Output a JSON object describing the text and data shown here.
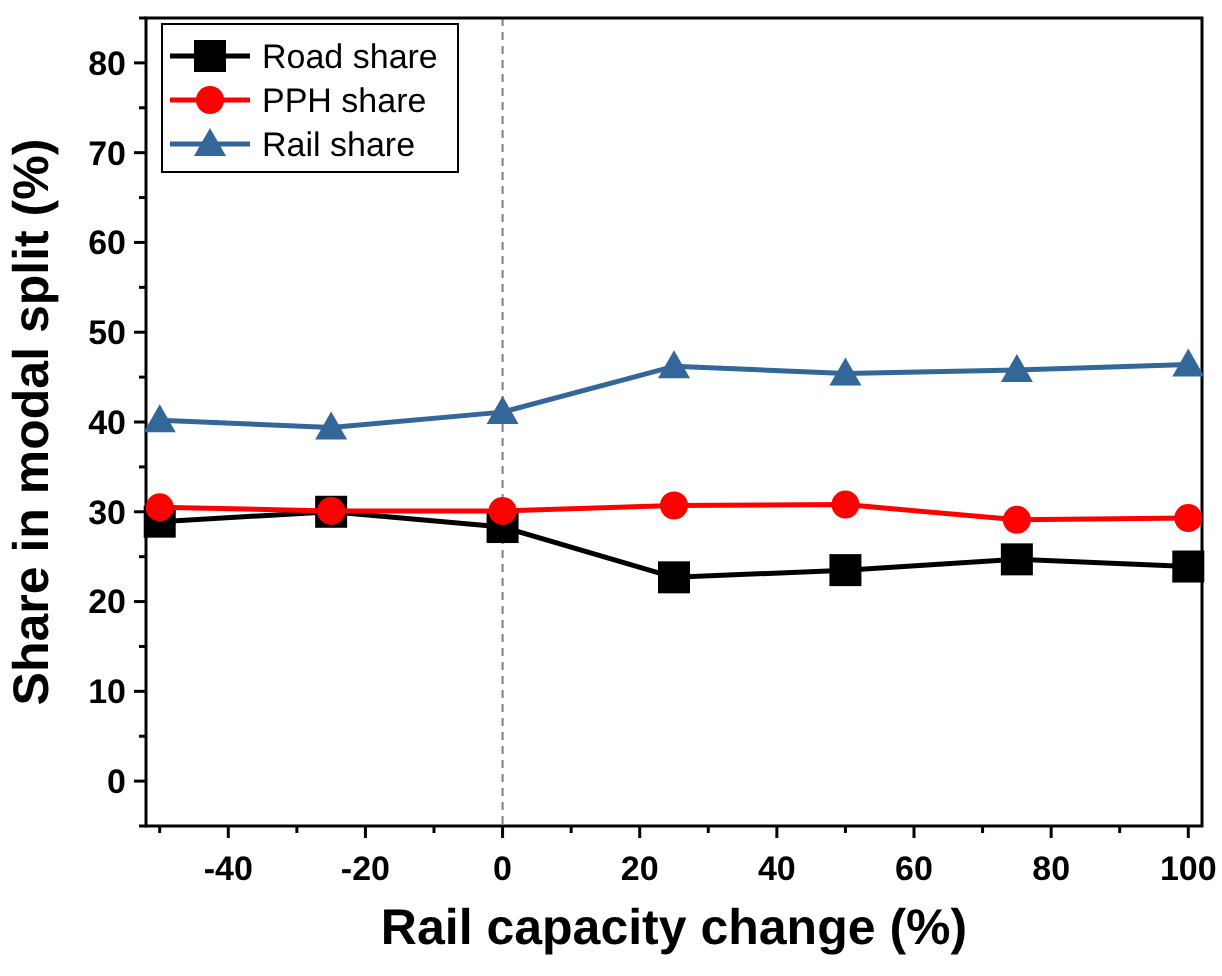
{
  "chart_data": {
    "type": "line",
    "xlabel": "Rail capacity change (%)",
    "ylabel": "Share in modal split (%)",
    "x": [
      -50,
      -25,
      0,
      25,
      50,
      75,
      100
    ],
    "series": [
      {
        "name": "Road share",
        "color": "#000000",
        "marker": "square",
        "values": [
          28.9,
          30.0,
          28.3,
          22.7,
          23.5,
          24.7,
          23.9
        ]
      },
      {
        "name": "PPH share",
        "color": "#ff0000",
        "marker": "circle",
        "values": [
          30.5,
          30.1,
          30.1,
          30.7,
          30.8,
          29.1,
          29.3
        ]
      },
      {
        "name": "Rail share",
        "color": "#336699",
        "marker": "triangle",
        "values": [
          40.2,
          39.4,
          41.1,
          46.2,
          45.4,
          45.8,
          46.4
        ]
      }
    ],
    "xlim": [
      -52,
      102
    ],
    "xticks": [
      -40,
      -20,
      0,
      20,
      40,
      60,
      80,
      100
    ],
    "ylim": [
      -5,
      85
    ],
    "yticks": [
      0,
      10,
      20,
      30,
      40,
      50,
      60,
      70,
      80
    ],
    "ref_lines": [
      {
        "axis": "x",
        "value": 0,
        "color": "#808080",
        "line_style": "dashed"
      }
    ],
    "grid": false,
    "legend": "top left",
    "line_style": "solid"
  }
}
